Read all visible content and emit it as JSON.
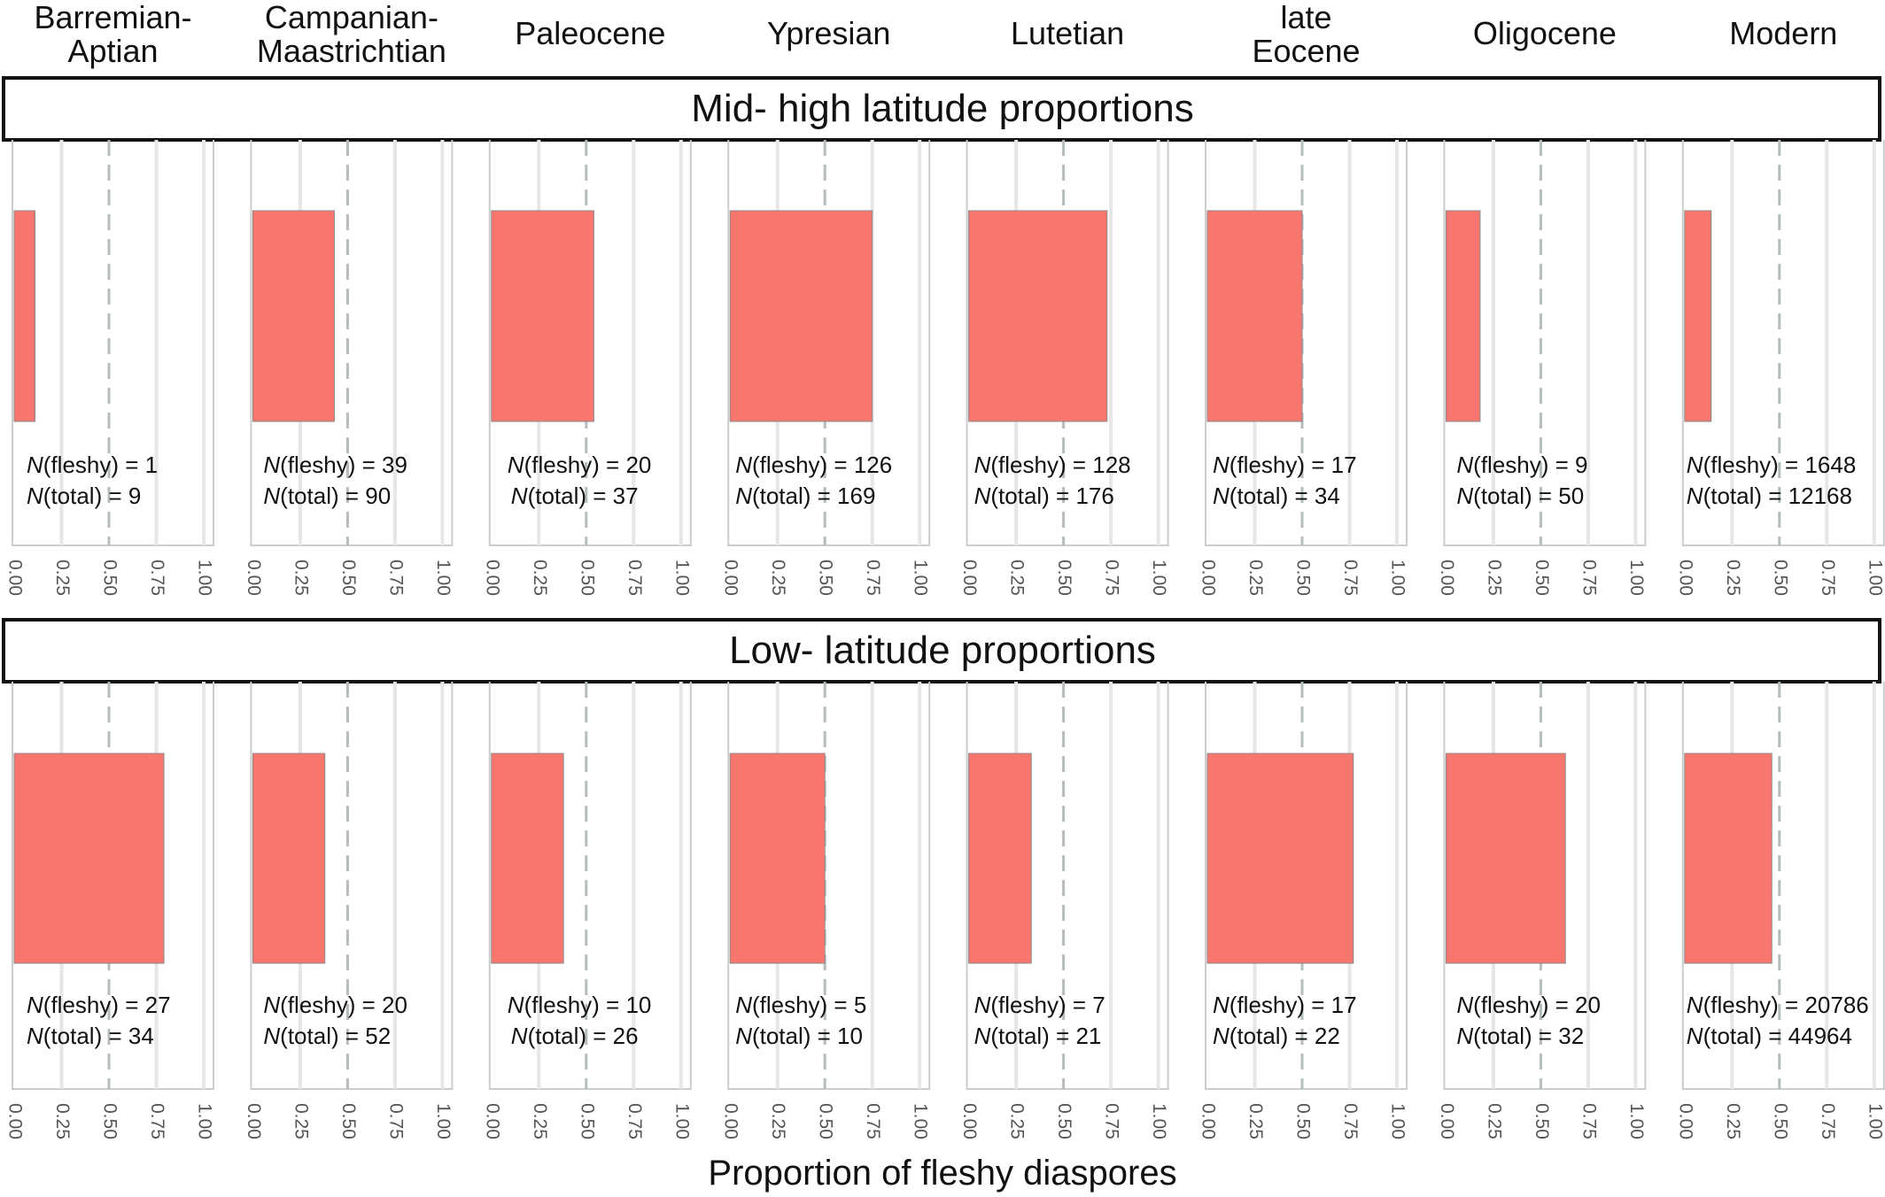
{
  "chart_data": {
    "type": "bar",
    "title": "",
    "xlabel": "Proportion of fleshy diaspores",
    "xlim": [
      0,
      1
    ],
    "xticks": [
      "0.00",
      "0.25",
      "0.50",
      "0.75",
      "1.00"
    ],
    "reference_line": 0.5,
    "periods": [
      [
        "Barremian-",
        "Aptian"
      ],
      [
        "Campanian-",
        "Maastrichtian"
      ],
      [
        "Paleocene"
      ],
      [
        "Ypresian"
      ],
      [
        "Lutetian"
      ],
      [
        "late",
        "Eocene"
      ],
      [
        "Oligocene"
      ],
      [
        "Modern"
      ]
    ],
    "bar_color": "#f8766d",
    "n_fleshy_label": "N",
    "n_fleshy_suffix": "(fleshy) = ",
    "n_total_label": "N",
    "n_total_suffix": "(total) = ",
    "rows": [
      {
        "name": "Mid- high latitude proportions",
        "values": [
          0.11,
          0.43,
          0.54,
          0.75,
          0.73,
          0.5,
          0.18,
          0.14
        ],
        "n_fleshy": [
          1,
          39,
          20,
          126,
          128,
          17,
          9,
          1648
        ],
        "n_total": [
          9,
          90,
          37,
          169,
          176,
          34,
          50,
          12168
        ]
      },
      {
        "name": "Low- latitude proportions",
        "values": [
          0.79,
          0.38,
          0.38,
          0.5,
          0.33,
          0.77,
          0.63,
          0.46
        ],
        "n_fleshy": [
          27,
          20,
          10,
          5,
          7,
          17,
          20,
          20786
        ],
        "n_total": [
          34,
          52,
          26,
          10,
          21,
          22,
          32,
          44964
        ]
      }
    ]
  }
}
